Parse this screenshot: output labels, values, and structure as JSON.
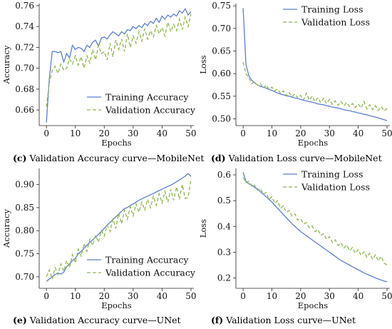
{
  "captions": [
    {
      "letter": "(c)",
      "text": "Validation Accuracy curve—MobileNet"
    },
    {
      "letter": "(d)",
      "text": "Validation Loss curve—MobileNet"
    },
    {
      "letter": "(e)",
      "text": "Validation Accuracy curve—UNet"
    },
    {
      "letter": "(f)",
      "text": "Validation Loss curve—UNet"
    }
  ],
  "colors": {
    "training": "#5b7fd6",
    "validation": "#8db84a"
  },
  "chart_data": [
    {
      "type": "line",
      "xlabel": "Epochs",
      "ylabel": "Accuracy",
      "xlim": [
        -2.5,
        51
      ],
      "ylim": [
        0.645,
        0.762
      ],
      "xticks": [
        0,
        10,
        20,
        30,
        40,
        50
      ],
      "yticks": [
        0.66,
        0.68,
        0.7,
        0.72,
        0.74,
        0.76
      ],
      "yticklabels": [
        "0.66",
        "0.68",
        "0.70",
        "0.72",
        "0.74",
        "0.76"
      ],
      "legend": "bottom-right",
      "grid": false,
      "x_start": 0,
      "series": [
        {
          "name": "Training Accuracy",
          "values": [
            0.648,
            0.69,
            0.716,
            0.716,
            0.715,
            0.716,
            0.706,
            0.714,
            0.71,
            0.722,
            0.718,
            0.72,
            0.719,
            0.716,
            0.722,
            0.72,
            0.725,
            0.727,
            0.721,
            0.729,
            0.73,
            0.728,
            0.732,
            0.735,
            0.733,
            0.731,
            0.735,
            0.733,
            0.737,
            0.736,
            0.74,
            0.738,
            0.741,
            0.739,
            0.743,
            0.741,
            0.745,
            0.743,
            0.748,
            0.744,
            0.75,
            0.747,
            0.751,
            0.749,
            0.752,
            0.75,
            0.755,
            0.753,
            0.757,
            0.751,
            0.754
          ]
        },
        {
          "name": "Validation Accuracy",
          "values": [
            0.663,
            0.686,
            0.698,
            0.702,
            0.695,
            0.704,
            0.698,
            0.7,
            0.709,
            0.704,
            0.712,
            0.703,
            0.711,
            0.7,
            0.712,
            0.705,
            0.718,
            0.708,
            0.722,
            0.714,
            0.716,
            0.708,
            0.724,
            0.711,
            0.727,
            0.718,
            0.728,
            0.716,
            0.733,
            0.72,
            0.731,
            0.724,
            0.735,
            0.726,
            0.738,
            0.728,
            0.736,
            0.73,
            0.741,
            0.733,
            0.739,
            0.731,
            0.744,
            0.735,
            0.742,
            0.736,
            0.747,
            0.737,
            0.749,
            0.74,
            0.752
          ]
        }
      ]
    },
    {
      "type": "line",
      "xlabel": "Epochs",
      "ylabel": "Loss",
      "xlim": [
        -2.5,
        51
      ],
      "ylim": [
        0.485,
        0.755
      ],
      "xticks": [
        0,
        10,
        20,
        30,
        40,
        50
      ],
      "yticks": [
        0.5,
        0.55,
        0.6,
        0.65,
        0.7,
        0.75
      ],
      "yticklabels": [
        "0.50",
        "0.55",
        "0.60",
        "0.65",
        "0.70",
        "0.75"
      ],
      "legend": "top-right",
      "grid": false,
      "x_start": 0,
      "series": [
        {
          "name": "Training Loss",
          "values": [
            0.745,
            0.62,
            0.595,
            0.585,
            0.58,
            0.575,
            0.572,
            0.57,
            0.568,
            0.565,
            0.563,
            0.56,
            0.557,
            0.555,
            0.553,
            0.551,
            0.55,
            0.548,
            0.546,
            0.545,
            0.543,
            0.541,
            0.54,
            0.538,
            0.537,
            0.535,
            0.533,
            0.532,
            0.531,
            0.529,
            0.528,
            0.526,
            0.525,
            0.524,
            0.522,
            0.52,
            0.519,
            0.518,
            0.516,
            0.515,
            0.513,
            0.512,
            0.51,
            0.509,
            0.507,
            0.505,
            0.504,
            0.502,
            0.5,
            0.498,
            0.496
          ]
        },
        {
          "name": "Validation Loss",
          "values": [
            0.625,
            0.6,
            0.59,
            0.578,
            0.582,
            0.574,
            0.578,
            0.568,
            0.575,
            0.565,
            0.57,
            0.562,
            0.566,
            0.556,
            0.562,
            0.551,
            0.558,
            0.549,
            0.555,
            0.546,
            0.552,
            0.542,
            0.557,
            0.541,
            0.55,
            0.538,
            0.547,
            0.536,
            0.546,
            0.534,
            0.543,
            0.532,
            0.54,
            0.53,
            0.538,
            0.529,
            0.536,
            0.527,
            0.534,
            0.525,
            0.533,
            0.524,
            0.538,
            0.522,
            0.531,
            0.52,
            0.529,
            0.519,
            0.527,
            0.517,
            0.523
          ]
        }
      ]
    },
    {
      "type": "line",
      "xlabel": "Epochs",
      "ylabel": "Accuracy",
      "xlim": [
        -2.5,
        51
      ],
      "ylim": [
        0.675,
        0.935
      ],
      "xticks": [
        0,
        10,
        20,
        30,
        40,
        50
      ],
      "yticks": [
        0.7,
        0.75,
        0.8,
        0.85,
        0.9
      ],
      "yticklabels": [
        "0.70",
        "0.75",
        "0.80",
        "0.85",
        "0.90"
      ],
      "legend": "bottom-right",
      "grid": false,
      "x_start": 0,
      "series": [
        {
          "name": "Training Accuracy",
          "values": [
            0.69,
            0.695,
            0.7,
            0.705,
            0.708,
            0.706,
            0.71,
            0.722,
            0.728,
            0.735,
            0.74,
            0.75,
            0.755,
            0.762,
            0.768,
            0.775,
            0.78,
            0.786,
            0.792,
            0.798,
            0.805,
            0.812,
            0.818,
            0.824,
            0.83,
            0.836,
            0.842,
            0.848,
            0.85,
            0.855,
            0.858,
            0.862,
            0.866,
            0.869,
            0.872,
            0.875,
            0.878,
            0.881,
            0.884,
            0.887,
            0.89,
            0.893,
            0.896,
            0.899,
            0.902,
            0.906,
            0.91,
            0.914,
            0.918,
            0.924,
            0.918
          ]
        },
        {
          "name": "Validation Accuracy",
          "values": [
            0.7,
            0.715,
            0.695,
            0.72,
            0.705,
            0.728,
            0.712,
            0.735,
            0.72,
            0.748,
            0.73,
            0.76,
            0.745,
            0.772,
            0.755,
            0.782,
            0.768,
            0.79,
            0.775,
            0.8,
            0.788,
            0.812,
            0.798,
            0.825,
            0.805,
            0.838,
            0.815,
            0.845,
            0.825,
            0.852,
            0.832,
            0.858,
            0.84,
            0.862,
            0.845,
            0.868,
            0.85,
            0.875,
            0.855,
            0.88,
            0.86,
            0.885,
            0.862,
            0.89,
            0.866,
            0.895,
            0.868,
            0.9,
            0.87,
            0.872,
            0.912
          ]
        }
      ]
    },
    {
      "type": "line",
      "xlabel": "Epochs",
      "ylabel": "Loss",
      "xlim": [
        -2.5,
        51
      ],
      "ylim": [
        0.16,
        0.625
      ],
      "xticks": [
        0,
        10,
        20,
        30,
        40,
        50
      ],
      "yticks": [
        0.2,
        0.3,
        0.4,
        0.5,
        0.6
      ],
      "yticklabels": [
        "0.2",
        "0.3",
        "0.4",
        "0.5",
        "0.6"
      ],
      "legend": "top-right",
      "grid": false,
      "x_start": 0,
      "series": [
        {
          "name": "Training Loss",
          "values": [
            0.61,
            0.575,
            0.565,
            0.56,
            0.552,
            0.545,
            0.535,
            0.525,
            0.515,
            0.505,
            0.495,
            0.482,
            0.47,
            0.458,
            0.446,
            0.434,
            0.422,
            0.41,
            0.4,
            0.39,
            0.38,
            0.372,
            0.364,
            0.356,
            0.348,
            0.34,
            0.332,
            0.324,
            0.316,
            0.308,
            0.3,
            0.292,
            0.284,
            0.276,
            0.268,
            0.262,
            0.256,
            0.25,
            0.244,
            0.238,
            0.232,
            0.226,
            0.22,
            0.215,
            0.21,
            0.205,
            0.2,
            0.196,
            0.192,
            0.188,
            0.186
          ]
        },
        {
          "name": "Validation Loss",
          "values": [
            0.59,
            0.57,
            0.575,
            0.555,
            0.56,
            0.54,
            0.548,
            0.525,
            0.532,
            0.505,
            0.515,
            0.49,
            0.5,
            0.47,
            0.48,
            0.455,
            0.462,
            0.44,
            0.448,
            0.425,
            0.43,
            0.41,
            0.415,
            0.395,
            0.402,
            0.38,
            0.388,
            0.365,
            0.372,
            0.35,
            0.36,
            0.338,
            0.348,
            0.326,
            0.336,
            0.316,
            0.328,
            0.306,
            0.318,
            0.296,
            0.31,
            0.288,
            0.302,
            0.28,
            0.296,
            0.272,
            0.29,
            0.266,
            0.284,
            0.258,
            0.25
          ]
        }
      ]
    }
  ]
}
